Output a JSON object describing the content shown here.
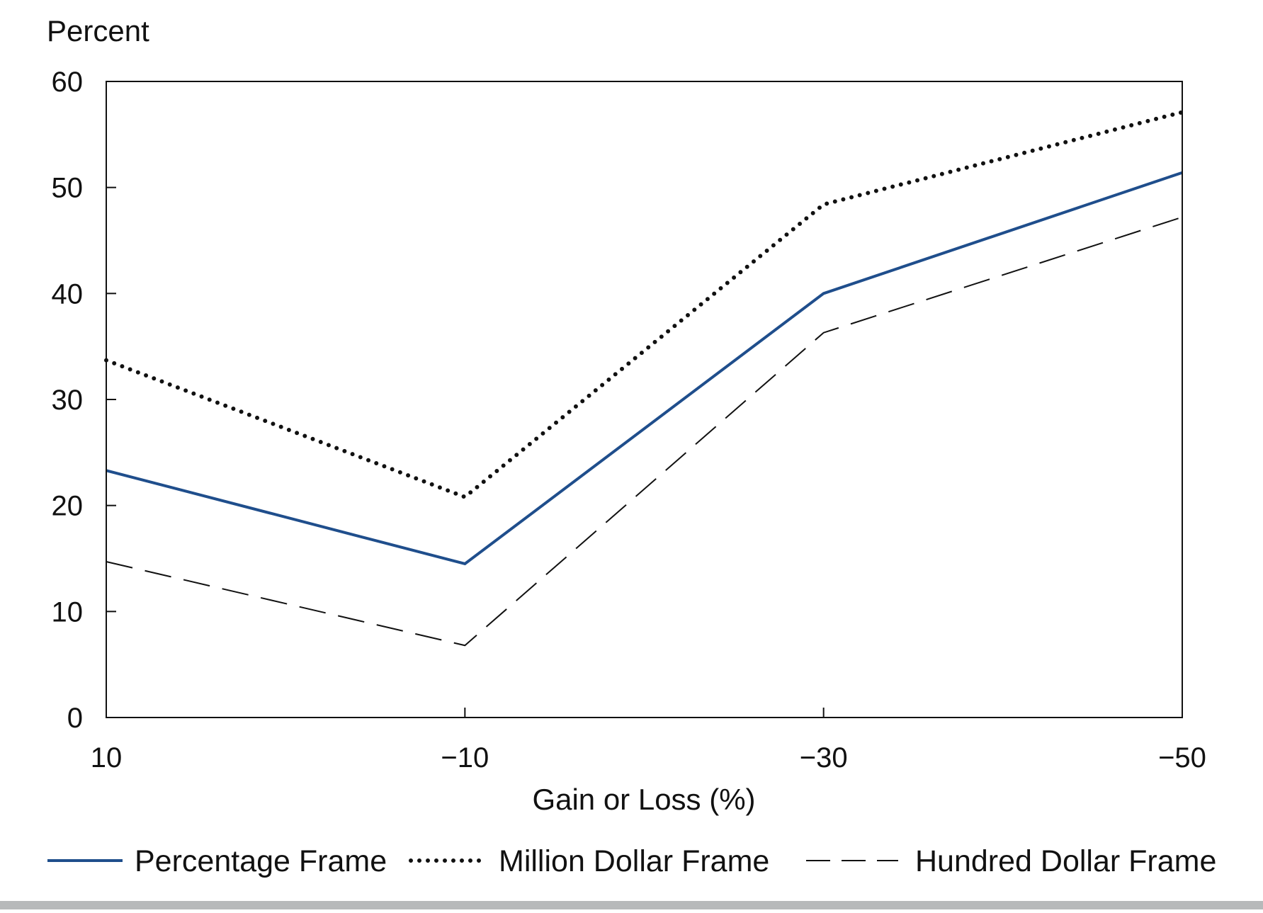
{
  "chart_data": {
    "type": "line",
    "title": "",
    "ylabel": "Percent",
    "xlabel": "Gain or Loss (%)",
    "x": [
      10,
      -10,
      -30,
      -50
    ],
    "x_tick_labels": [
      "10",
      "−10",
      "−30",
      "−50"
    ],
    "ylim": [
      0,
      60
    ],
    "y_ticks": [
      0,
      10,
      20,
      30,
      40,
      50,
      60
    ],
    "y_tick_labels": [
      "0",
      "10",
      "20",
      "30",
      "40",
      "50",
      "60"
    ],
    "grid": false,
    "legend_position": "bottom",
    "series": [
      {
        "name": "Percentage Frame",
        "values": [
          23.3,
          14.5,
          40.0,
          51.4
        ],
        "color": "#1f4e8c",
        "style": "solid"
      },
      {
        "name": "Million Dollar Frame",
        "values": [
          33.7,
          20.8,
          48.4,
          57.1
        ],
        "color": "#111111",
        "style": "dotted"
      },
      {
        "name": "Hundred Dollar Frame",
        "values": [
          14.7,
          6.8,
          36.3,
          47.2
        ],
        "color": "#111111",
        "style": "dashed"
      }
    ]
  }
}
